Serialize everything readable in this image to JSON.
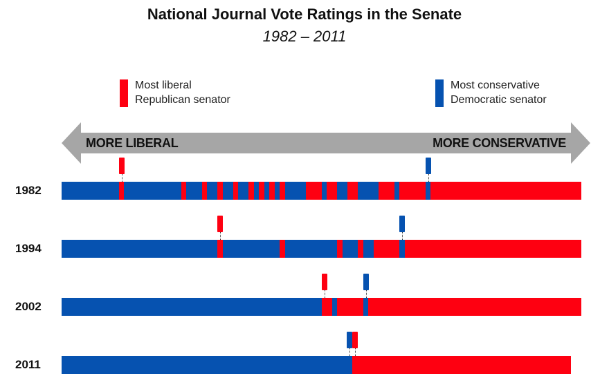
{
  "title": "National Journal Vote Ratings in the Senate",
  "subtitle": "1982 – 2011",
  "colors": {
    "democrat": "#0652b0",
    "republican": "#fe0011",
    "arrow": "#a6a6a6"
  },
  "legend": {
    "liberal_republican": {
      "line1": "Most liberal",
      "line2": "Republican senator",
      "color": "#fe0011"
    },
    "conservative_democrat": {
      "line1": "Most conservative",
      "line2": "Democratic senator",
      "color": "#0652b0"
    }
  },
  "axis": {
    "left_label": "MORE LIBERAL",
    "right_label": "MORE CONSERVATIVE"
  },
  "chart_data": {
    "type": "ordered party strip",
    "rows": [
      {
        "year": "1982",
        "segments": [
          [
            "D",
            11
          ],
          [
            "R",
            1
          ],
          [
            "D",
            11
          ],
          [
            "R",
            1
          ],
          [
            "D",
            3
          ],
          [
            "R",
            1
          ],
          [
            "D",
            2
          ],
          [
            "R",
            1
          ],
          [
            "D",
            2
          ],
          [
            "R",
            1
          ],
          [
            "D",
            2
          ],
          [
            "R",
            1
          ],
          [
            "D",
            1
          ],
          [
            "R",
            1
          ],
          [
            "D",
            1
          ],
          [
            "R",
            1
          ],
          [
            "D",
            1
          ],
          [
            "R",
            1
          ],
          [
            "D",
            4
          ],
          [
            "R",
            3
          ],
          [
            "D",
            1
          ],
          [
            "R",
            2
          ],
          [
            "D",
            2
          ],
          [
            "R",
            2
          ],
          [
            "D",
            4
          ],
          [
            "R",
            3
          ],
          [
            "D",
            1
          ],
          [
            "R",
            5
          ],
          [
            "D",
            1
          ],
          [
            "R",
            29
          ]
        ],
        "most_liberal_republican_rank": 12,
        "most_conservative_democrat_rank": 71
      },
      {
        "year": "1994",
        "segments": [
          [
            "D",
            30
          ],
          [
            "R",
            1
          ],
          [
            "D",
            11
          ],
          [
            "R",
            1
          ],
          [
            "D",
            10
          ],
          [
            "R",
            1
          ],
          [
            "D",
            3
          ],
          [
            "R",
            1
          ],
          [
            "D",
            2
          ],
          [
            "R",
            5
          ],
          [
            "D",
            1
          ],
          [
            "R",
            34
          ]
        ],
        "most_liberal_republican_rank": 31,
        "most_conservative_democrat_rank": 66
      },
      {
        "year": "2002",
        "segments": [
          [
            "D",
            50
          ],
          [
            "R",
            2
          ],
          [
            "D",
            1
          ],
          [
            "R",
            5
          ],
          [
            "D",
            1
          ],
          [
            "R",
            41
          ]
        ],
        "most_liberal_republican_rank": 51,
        "most_conservative_democrat_rank": 59
      },
      {
        "year": "2011",
        "segments": [
          [
            "D",
            57
          ],
          [
            "R",
            43
          ]
        ],
        "most_liberal_republican_rank": 58,
        "most_conservative_democrat_rank": 57
      }
    ]
  }
}
